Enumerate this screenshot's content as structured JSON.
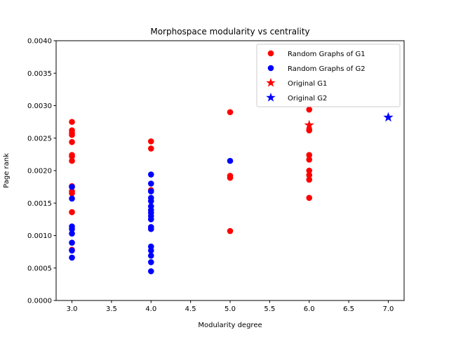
{
  "chart_data": {
    "type": "scatter",
    "title": "Morphospace modularity vs centrality",
    "xlabel": "Modularity degree",
    "ylabel": "Page rank",
    "xlim": [
      2.8,
      7.2
    ],
    "ylim": [
      0,
      0.004
    ],
    "xticks": [
      "3.0",
      "3.5",
      "4.0",
      "4.5",
      "5.0",
      "5.5",
      "6.0",
      "6.5",
      "7.0"
    ],
    "yticks": [
      "0.0000",
      "0.0005",
      "0.0010",
      "0.0015",
      "0.0020",
      "0.0025",
      "0.0030",
      "0.0035",
      "0.0040"
    ],
    "grid": false,
    "legend_position": "top-right",
    "series": [
      {
        "name": "Random Graphs of G1",
        "marker": "circle",
        "color": "#ff0000",
        "points": [
          [
            3,
            0.00275
          ],
          [
            3,
            0.00262
          ],
          [
            3,
            0.00258
          ],
          [
            3,
            0.00255
          ],
          [
            3,
            0.00244
          ],
          [
            3,
            0.00224
          ],
          [
            3,
            0.00222
          ],
          [
            3,
            0.00215
          ],
          [
            3,
            0.00176
          ],
          [
            3,
            0.00168
          ],
          [
            3,
            0.00165
          ],
          [
            3,
            0.00136
          ],
          [
            3,
            0.00078
          ],
          [
            4,
            0.00245
          ],
          [
            4,
            0.00234
          ],
          [
            4,
            0.0017
          ],
          [
            5,
            0.0029
          ],
          [
            5,
            0.00192
          ],
          [
            5,
            0.00189
          ],
          [
            5,
            0.00107
          ],
          [
            6,
            0.00294
          ],
          [
            6,
            0.00262
          ],
          [
            6,
            0.00224
          ],
          [
            6,
            0.00217
          ],
          [
            6,
            0.002
          ],
          [
            6,
            0.00193
          ],
          [
            6,
            0.00186
          ],
          [
            6,
            0.00158
          ]
        ]
      },
      {
        "name": "Random Graphs of G2",
        "marker": "circle",
        "color": "#0000ff",
        "points": [
          [
            3,
            0.00175
          ],
          [
            3,
            0.00157
          ],
          [
            3,
            0.00114
          ],
          [
            3,
            0.0011
          ],
          [
            3,
            0.00103
          ],
          [
            3,
            0.00089
          ],
          [
            3,
            0.00077
          ],
          [
            3,
            0.00066
          ],
          [
            4,
            0.00194
          ],
          [
            4,
            0.0018
          ],
          [
            4,
            0.00168
          ],
          [
            4,
            0.00158
          ],
          [
            4,
            0.00153
          ],
          [
            4,
            0.00145
          ],
          [
            4,
            0.00139
          ],
          [
            4,
            0.00135
          ],
          [
            4,
            0.0013
          ],
          [
            4,
            0.00125
          ],
          [
            4,
            0.00113
          ],
          [
            4,
            0.0011
          ],
          [
            4,
            0.00083
          ],
          [
            4,
            0.00077
          ],
          [
            4,
            0.00069
          ],
          [
            4,
            0.00059
          ],
          [
            4,
            0.00045
          ],
          [
            5,
            0.00215
          ]
        ]
      },
      {
        "name": "Original G1",
        "marker": "star",
        "color": "#ff0000",
        "points": [
          [
            6,
            0.0027
          ]
        ]
      },
      {
        "name": "Original G2",
        "marker": "star",
        "color": "#0000ff",
        "points": [
          [
            7,
            0.00282
          ]
        ]
      }
    ]
  }
}
